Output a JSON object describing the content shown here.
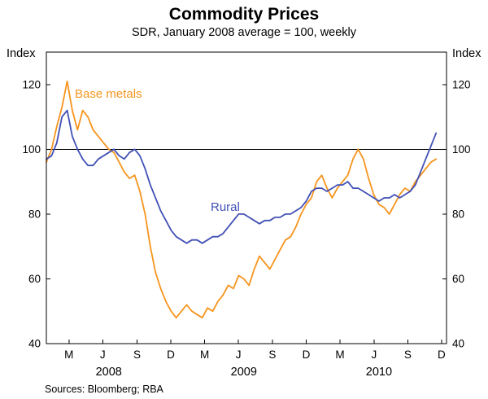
{
  "chart_data": {
    "type": "line",
    "title": "Commodity Prices",
    "subtitle": "SDR, January 2008 average = 100, weekly",
    "ylabel_left": "Index",
    "ylabel_right": "Index",
    "ylim": [
      40,
      130
    ],
    "yticks": [
      40,
      60,
      80,
      100,
      120
    ],
    "reference_line_y": 100,
    "grid": "horizontal reference line at 100 only",
    "legend": "inline series labels",
    "frequency": "weekly",
    "source_note": "Sources: Bloomberg; RBA",
    "x_axis": {
      "unit": "weeks from January 2008",
      "xlim": [
        0,
        154
      ],
      "month_ticks": [
        {
          "label": "M",
          "week": 8.7
        },
        {
          "label": "J",
          "week": 21.7
        },
        {
          "label": "S",
          "week": 34.9
        },
        {
          "label": "D",
          "week": 47.9
        },
        {
          "label": "M",
          "week": 60.9
        },
        {
          "label": "J",
          "week": 73.9
        },
        {
          "label": "S",
          "week": 87.0
        },
        {
          "label": "D",
          "week": 100.0
        },
        {
          "label": "M",
          "week": 113.0
        },
        {
          "label": "J",
          "week": 126.1
        },
        {
          "label": "S",
          "week": 139.1
        },
        {
          "label": "D",
          "week": 152.1
        }
      ],
      "year_labels": [
        {
          "label": "2008",
          "week": 24
        },
        {
          "label": "2009",
          "week": 76
        },
        {
          "label": "2010",
          "week": 128
        }
      ]
    },
    "x_start_week": 0,
    "x_interval_weeks": 2,
    "series": [
      {
        "name": "Base metals",
        "color": "#F7941D",
        "values": [
          96,
          100,
          107,
          113,
          121,
          112,
          106,
          112,
          110,
          106,
          104,
          102,
          100,
          99,
          96,
          93,
          91,
          92,
          87,
          80,
          70,
          62,
          57,
          53,
          50,
          48,
          50,
          52,
          50,
          49,
          48,
          51,
          50,
          53,
          55,
          58,
          57,
          61,
          60,
          58,
          63,
          67,
          65,
          63,
          66,
          69,
          72,
          73,
          76,
          80,
          83,
          85,
          90,
          92,
          88,
          85,
          88,
          90,
          92,
          97,
          100,
          97,
          91,
          86,
          83,
          82,
          80,
          83,
          86,
          88,
          87,
          90,
          92,
          94,
          96,
          97
        ]
      },
      {
        "name": "Rural",
        "color": "#4150B5",
        "values": [
          97,
          98,
          102,
          110,
          112,
          104,
          100,
          97,
          95,
          95,
          97,
          98,
          99,
          100,
          98,
          97,
          99,
          100,
          98,
          94,
          89,
          85,
          81,
          78,
          75,
          73,
          72,
          71,
          72,
          72,
          71,
          72,
          73,
          73,
          74,
          76,
          78,
          80,
          80,
          79,
          78,
          77,
          78,
          78,
          79,
          79,
          80,
          80,
          81,
          82,
          84,
          87,
          88,
          88,
          87,
          88,
          89,
          89,
          90,
          88,
          88,
          87,
          86,
          85,
          84,
          85,
          85,
          86,
          85,
          86,
          87,
          89,
          93,
          97,
          101,
          105
        ]
      }
    ]
  }
}
